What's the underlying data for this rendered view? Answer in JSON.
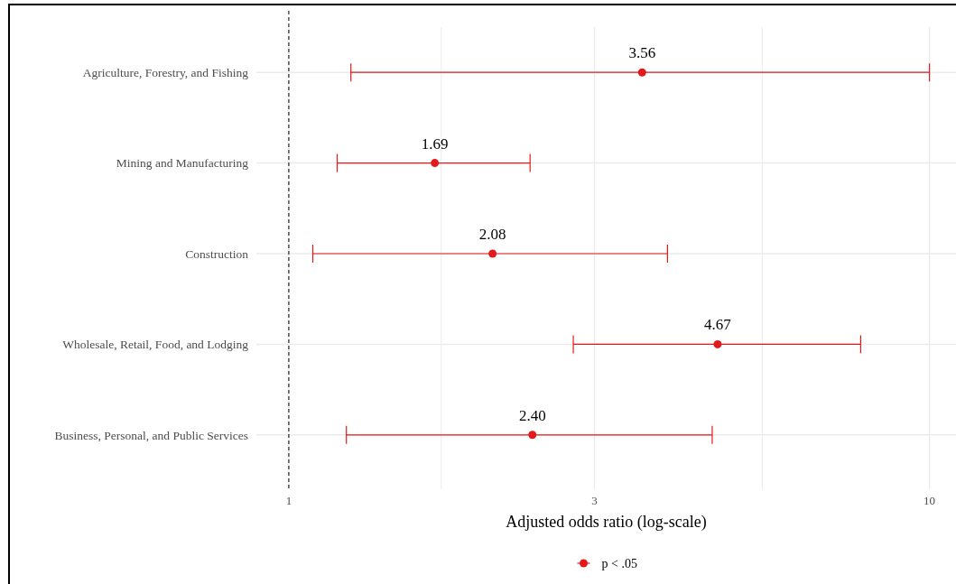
{
  "chart_data": {
    "type": "scatter",
    "orientation": "horizontal",
    "xlabel": "Adjusted odds ratio (log-scale)",
    "categories": [
      "Agriculture, Forestry, and Fishing",
      "Mining and Manufacturing",
      "Construction",
      "Wholesale, Retail, Food, and Lodging",
      "Business, Personal, and Public Services"
    ],
    "series": [
      {
        "name": "p < .05",
        "color": "#e31a1c",
        "values": [
          3.56,
          1.69,
          2.08,
          4.67,
          2.4
        ],
        "errors": [
          [
            1.25,
            10
          ],
          [
            1.19,
            2.38
          ],
          [
            1.09,
            3.9
          ],
          [
            2.78,
            7.81
          ],
          [
            1.23,
            4.58
          ]
        ],
        "value_labels": [
          "3.56",
          "1.69",
          "2.08",
          "4.67",
          "2.40"
        ]
      }
    ],
    "log": "x",
    "xlim": [
      0.89,
      11
    ],
    "xticks": [
      1,
      {
        "value": 1.73,
        "label": null
      },
      3,
      {
        "value": 5.48,
        "label": null
      },
      10
    ],
    "ref_lines": [
      {
        "axis": "x",
        "value": 1,
        "color": "#000000",
        "line_style": "dashed"
      }
    ],
    "grid": true,
    "legend": "bottom",
    "marker": "circle"
  }
}
